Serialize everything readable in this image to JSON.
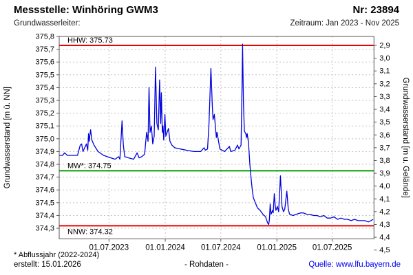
{
  "header": {
    "title": "Messstelle: Winhöring GWM3",
    "number_label": "Nr: 23894",
    "aquifer_label": "Grundwasserleiter:",
    "period_label": "Zeitraum: Jan 2023 - Nov 2025"
  },
  "footer": {
    "note": "* Abflussjahr (2022-2024)",
    "created": "erstellt: 15.01.2026",
    "center": "- Rohdaten -",
    "source": "Quelle: www.lfu.bayern.de"
  },
  "colors": {
    "curve": "#0000dd",
    "hhw_nnw": "#ee0000",
    "mw": "#00a000",
    "grid": "#c3c3c3",
    "border": "#555555",
    "text": "#000000",
    "link": "#0000ee"
  },
  "chart_data": {
    "type": "line",
    "title": "",
    "ylabel_left": "Grundwasserstand [m ü. NN]",
    "ylabel_right": "Grundwasserstand [m u. Gelände]",
    "x_range": [
      2023.05,
      2025.87
    ],
    "y_left": {
      "min": 374.217,
      "max": 375.8,
      "tick_start": 374.3,
      "tick_end": 375.8,
      "step": 0.1
    },
    "y_right": {
      "tick_start": 2.9,
      "tick_end": 4.5,
      "step": 0.1,
      "anchor_left_value": 375.73,
      "anchor_right_value": 2.9
    },
    "x_ticks": [
      {
        "t": 2023.496,
        "label": "01.07.2023"
      },
      {
        "t": 2024.0,
        "label": "01.01.2024"
      },
      {
        "t": 2024.498,
        "label": "01.07.2024"
      },
      {
        "t": 2025.0,
        "label": "01.01.2025"
      },
      {
        "t": 2025.496,
        "label": "01.07.2025"
      }
    ],
    "ref_lines": [
      {
        "name": "HHW",
        "label": "HHW: 375.73",
        "value": 375.73,
        "color": "#ee0000",
        "label_side": "above"
      },
      {
        "name": "MW",
        "label": "MW*: 374.75",
        "value": 374.75,
        "color": "#00a000",
        "label_side": "above"
      },
      {
        "name": "NNW",
        "label": "NNW: 374.32",
        "value": 374.32,
        "color": "#ee0000",
        "label_side": "below"
      }
    ],
    "series": [
      {
        "name": "Rohdaten",
        "color": "#0000dd",
        "x": [
          2023.05,
          2023.08,
          2023.098,
          2023.123,
          2023.214,
          2023.239,
          2023.251,
          2023.263,
          2023.294,
          2023.306,
          2023.313,
          2023.319,
          2023.331,
          2023.343,
          2023.362,
          2023.398,
          2023.447,
          2023.515,
          2023.551,
          2023.582,
          2023.594,
          2023.613,
          2023.625,
          2023.637,
          2023.674,
          2023.717,
          2023.748,
          2023.766,
          2023.79,
          2023.815,
          2023.833,
          2023.846,
          2023.855,
          2023.864,
          2023.876,
          2023.888,
          2023.901,
          2023.913,
          2023.925,
          2023.938,
          2023.95,
          2023.959,
          2023.965,
          2023.974,
          2023.98,
          2023.987,
          2023.997,
          2024.005,
          2024.017,
          2024.029,
          2024.042,
          2024.06,
          2024.085,
          2024.134,
          2024.195,
          2024.256,
          2024.317,
          2024.348,
          2024.36,
          2024.379,
          2024.391,
          2024.409,
          2024.422,
          2024.428,
          2024.44,
          2024.458,
          2024.464,
          2024.489,
          2024.532,
          2024.575,
          2024.587,
          2024.624,
          2024.648,
          2024.66,
          2024.679,
          2024.688,
          2024.693,
          2024.7,
          2024.709,
          2024.722,
          2024.728,
          2024.734,
          2024.746,
          2024.758,
          2024.768,
          2024.777,
          2024.789,
          2024.807,
          2024.826,
          2024.85,
          2024.875,
          2024.899,
          2024.918,
          2024.927,
          2024.933,
          2024.94,
          2024.948,
          2024.961,
          2024.967,
          2024.977,
          2024.985,
          2024.991,
          2025.004,
          2025.016,
          2025.032,
          2025.046,
          2025.059,
          2025.071,
          2025.089,
          2025.102,
          2025.114,
          2025.145,
          2025.175,
          2025.212,
          2025.237,
          2025.267,
          2025.298,
          2025.328,
          2025.359,
          2025.39,
          2025.42,
          2025.451,
          2025.482,
          2025.512,
          2025.543,
          2025.574,
          2025.604,
          2025.635,
          2025.665,
          2025.696,
          2025.727,
          2025.757,
          2025.788,
          2025.819,
          2025.843,
          2025.862
        ],
        "y": [
          374.87,
          374.87,
          374.89,
          374.87,
          374.87,
          374.95,
          374.96,
          374.9,
          374.96,
          374.91,
          375.04,
          374.98,
          375.07,
          374.99,
          374.95,
          374.9,
          374.87,
          374.85,
          374.84,
          374.86,
          374.84,
          375.14,
          374.95,
          374.86,
          374.85,
          374.84,
          374.89,
          374.85,
          374.86,
          374.88,
          375.05,
          374.98,
          375.4,
          375.05,
          375.1,
          374.96,
          375.02,
          375.56,
          375.12,
          375.07,
          375.46,
          375.12,
          375.36,
          375.05,
          375.1,
          374.99,
          375.19,
          375.02,
          375.05,
          375.08,
          374.98,
          374.95,
          374.93,
          374.92,
          374.91,
          374.9,
          374.9,
          374.93,
          374.91,
          374.92,
          375.1,
          375.55,
          375.25,
          375.15,
          375.19,
          375.01,
          375.05,
          374.92,
          374.9,
          374.94,
          374.9,
          374.91,
          374.95,
          374.92,
          374.95,
          375.4,
          375.74,
          375.3,
          375.06,
          375.04,
          375.01,
          375.04,
          374.97,
          374.8,
          374.7,
          374.62,
          374.54,
          374.5,
          374.46,
          374.44,
          374.41,
          374.39,
          374.34,
          374.33,
          374.37,
          374.49,
          374.41,
          374.44,
          374.42,
          374.57,
          374.48,
          374.44,
          374.47,
          374.43,
          374.71,
          374.47,
          374.43,
          374.45,
          374.59,
          374.45,
          374.41,
          374.4,
          374.41,
          374.42,
          374.42,
          374.41,
          374.41,
          374.4,
          374.4,
          374.39,
          374.4,
          374.38,
          374.38,
          374.39,
          374.37,
          374.38,
          374.37,
          374.37,
          374.36,
          374.37,
          374.36,
          374.36,
          374.36,
          374.35,
          374.36,
          374.37
        ]
      }
    ],
    "legend": {
      "visible": false
    },
    "grid": "dashed"
  }
}
